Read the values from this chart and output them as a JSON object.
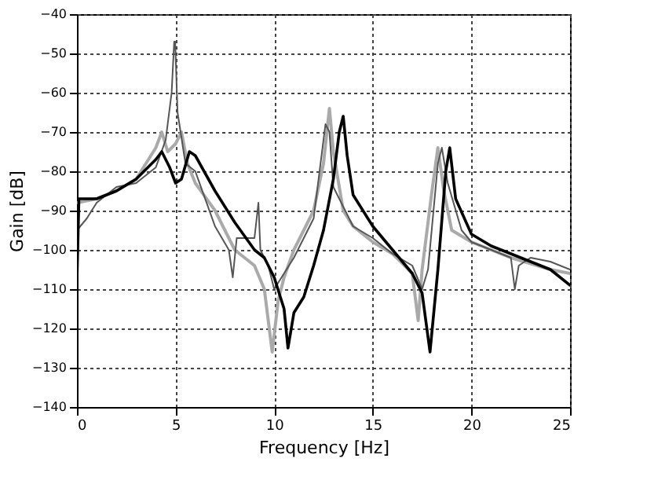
{
  "chart_data": {
    "type": "line",
    "xlabel": "Frequency  [Hz]",
    "ylabel": "Gain  [dB]",
    "xlim": [
      0,
      25
    ],
    "ylim": [
      -140,
      -40
    ],
    "xticks": [
      0,
      5,
      10,
      15,
      20,
      25
    ],
    "yticks": [
      -140,
      -130,
      -120,
      -110,
      -100,
      -90,
      -80,
      -70,
      -60,
      -50,
      -40
    ],
    "grid": true,
    "series": [
      {
        "color": "#aaaaaa",
        "x": [
          0,
          1,
          2,
          3,
          4,
          4.3,
          4.6,
          5,
          5.3,
          5.6,
          6,
          7,
          8,
          9,
          9.5,
          9.9,
          10.2,
          10.5,
          11,
          12,
          12.5,
          12.8,
          13,
          13.5,
          14,
          15,
          16,
          17,
          17.3,
          17.5,
          18,
          18.3,
          18.6,
          19,
          20,
          22,
          24,
          25
        ],
        "values": [
          -88,
          -87,
          -85,
          -82,
          -74,
          -70,
          -75,
          -73,
          -70,
          -78,
          -83,
          -90,
          -100,
          -104,
          -110,
          -126,
          -113,
          -107,
          -100,
          -90,
          -78,
          -64,
          -75,
          -90,
          -94,
          -98,
          -101,
          -106,
          -118,
          -105,
          -85,
          -74,
          -85,
          -95,
          -98,
          -102,
          -105,
          -106
        ]
      },
      {
        "color": "#555555",
        "x": [
          0,
          0.5,
          1,
          2,
          3,
          4,
          4.5,
          4.8,
          4.93,
          4.98,
          5.1,
          5.5,
          6,
          7,
          7.7,
          7.9,
          8.1,
          8.5,
          9,
          9.2,
          9.3,
          9.7,
          10,
          10.5,
          11,
          12,
          12.6,
          12.8,
          13,
          14,
          15,
          16,
          17,
          17.5,
          17.8,
          18.3,
          18.5,
          18.8,
          19.5,
          20,
          22,
          22.2,
          22.4,
          23,
          24,
          25
        ],
        "values": [
          -95,
          -92,
          -88,
          -84,
          -83,
          -79,
          -72,
          -60,
          -47,
          -47,
          -65,
          -78,
          -80,
          -94,
          -100,
          -107,
          -97,
          -97,
          -97,
          -88,
          -100,
          -104,
          -110,
          -106,
          -102,
          -92,
          -68,
          -70,
          -84,
          -94,
          -97,
          -101,
          -104,
          -110,
          -105,
          -78,
          -74,
          -83,
          -95,
          -98,
          -102,
          -110,
          -104,
          -102,
          -103,
          -105
        ]
      },
      {
        "color": "#000000",
        "x": [
          0,
          0.1,
          1,
          2,
          3,
          4,
          4.3,
          4.7,
          5,
          5.3,
          5.7,
          6,
          7,
          8,
          9,
          9.5,
          10,
          10.5,
          10.7,
          11,
          11.5,
          12,
          12.5,
          13,
          13.3,
          13.5,
          13.7,
          14,
          15,
          16,
          17,
          17.5,
          17.9,
          18.3,
          18.7,
          18.9,
          19.2,
          20,
          21,
          22,
          23,
          24,
          25
        ],
        "values": [
          -108,
          -87,
          -87,
          -85,
          -82,
          -77,
          -75,
          -79,
          -83,
          -82,
          -75,
          -76,
          -85,
          -93,
          -100,
          -102,
          -107,
          -115,
          -125,
          -116,
          -112,
          -104,
          -95,
          -82,
          -70,
          -66,
          -76,
          -86,
          -94,
          -100,
          -106,
          -111,
          -126,
          -105,
          -80,
          -74,
          -87,
          -96,
          -99,
          -101,
          -103,
          -105,
          -109
        ]
      }
    ]
  }
}
